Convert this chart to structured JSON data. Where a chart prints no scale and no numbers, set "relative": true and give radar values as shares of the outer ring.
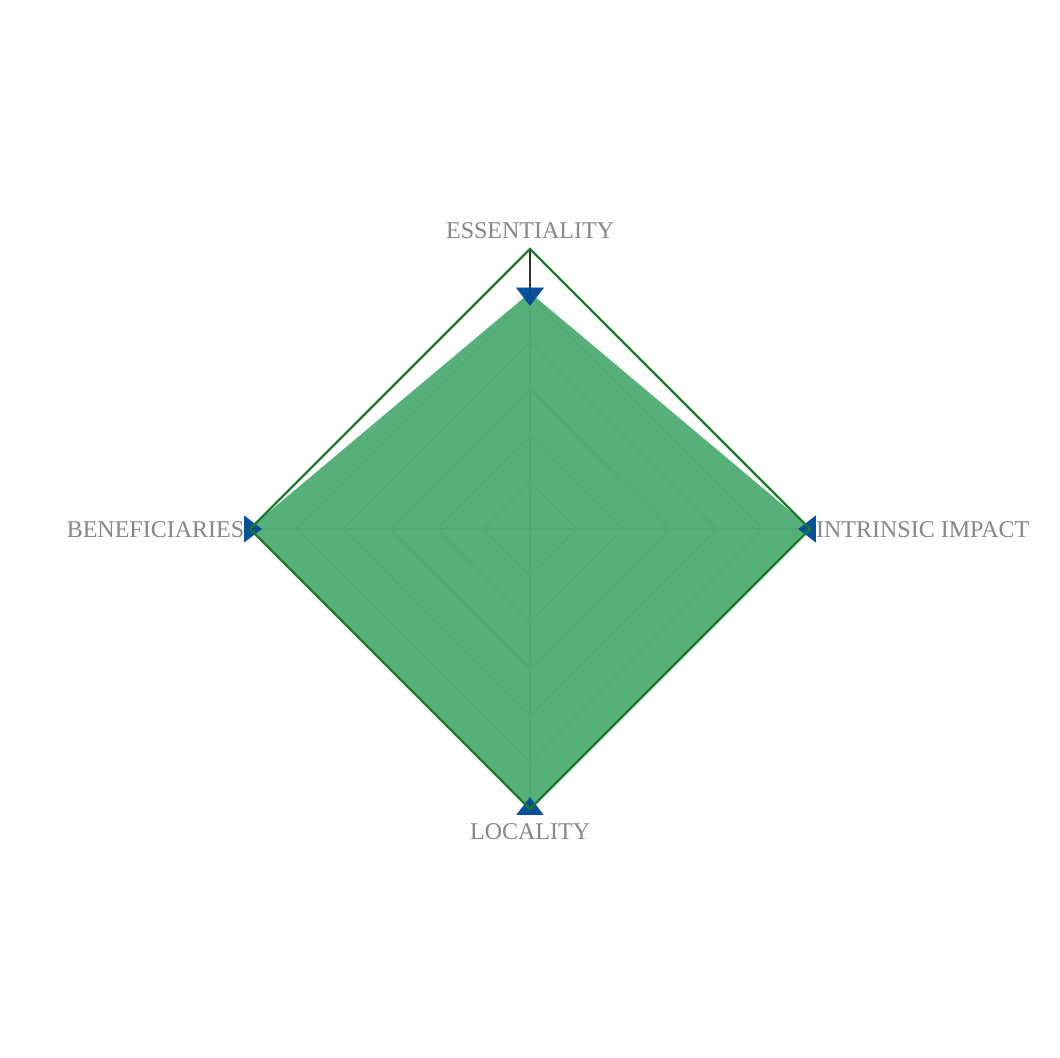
{
  "chart_data": {
    "type": "radar",
    "relative": true,
    "categories": [
      "ESSENTIALITY",
      "INTRINSIC IMPACT",
      "LOCALITY",
      "BENEFICIARIES"
    ],
    "series": [
      {
        "color": "#52ae76",
        "values": [
          0.84,
          1,
          1,
          1
        ]
      }
    ],
    "marker": "triangle",
    "grid": true
  }
}
